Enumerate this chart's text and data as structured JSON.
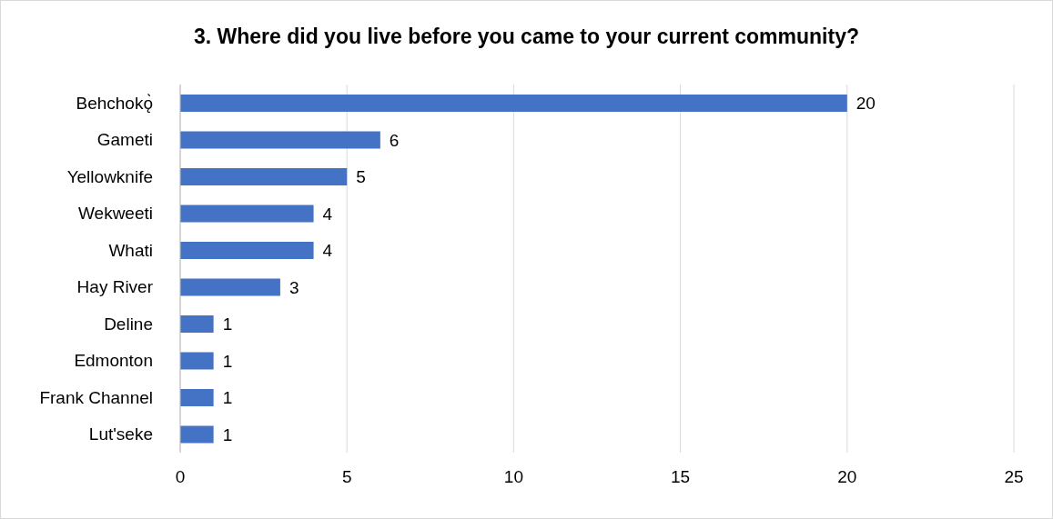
{
  "chart_data": {
    "type": "bar",
    "orientation": "horizontal",
    "title": "3. Where did you live before you came to your current community?",
    "categories": [
      "Behchokǫ̀",
      "Gameti",
      "Yellowknife",
      "Wekweeti",
      "Whati",
      "Hay River",
      "Deline",
      "Edmonton",
      "Frank Channel",
      "Lut'seke"
    ],
    "values": [
      20,
      6,
      5,
      4,
      4,
      3,
      1,
      1,
      1,
      1
    ],
    "color": "#4472c4",
    "xlim": [
      0,
      25
    ],
    "xticks": [
      0,
      5,
      10,
      15,
      20,
      25
    ],
    "grid": "x",
    "data_labels": true,
    "legend": false
  }
}
